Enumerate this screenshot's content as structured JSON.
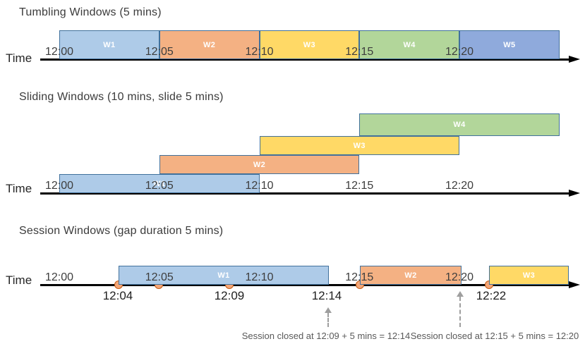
{
  "colors": {
    "window_blue": "#AECBE8",
    "window_orange": "#F4B183",
    "window_yellow": "#FFD966",
    "window_green": "#B2D69A",
    "window_indigo": "#8FAADC",
    "window_border": "#41719C",
    "axis_black": "#000000",
    "event_dot_fill": "#F3A678",
    "event_dot_border": "#C55A11",
    "annotation_gray": "#595959",
    "dashed_arrow_gray": "#9E9E9E"
  },
  "sections": [
    {
      "id": "tumbling",
      "title": "Tumbling Windows (5 mins)",
      "time_label": "Time",
      "ticks": [
        "12:00",
        "12:05",
        "12:10",
        "12:15",
        "12:20"
      ],
      "windows": [
        {
          "label": "W1",
          "start": "12:00",
          "end": "12:05",
          "color": "window_blue"
        },
        {
          "label": "W2",
          "start": "12:05",
          "end": "12:10",
          "color": "window_orange"
        },
        {
          "label": "W3",
          "start": "12:10",
          "end": "12:15",
          "color": "window_yellow"
        },
        {
          "label": "W4",
          "start": "12:15",
          "end": "12:20",
          "color": "window_green"
        },
        {
          "label": "W5",
          "start": "12:20",
          "end": "12:25",
          "color": "window_indigo"
        }
      ]
    },
    {
      "id": "sliding",
      "title": "Sliding Windows (10 mins, slide 5 mins)",
      "time_label": "Time",
      "ticks": [
        "12:00",
        "12:05",
        "12:10",
        "12:15",
        "12:20"
      ],
      "windows": [
        {
          "label": "W1",
          "start": "12:00",
          "end": "12:10",
          "color": "window_blue"
        },
        {
          "label": "W2",
          "start": "12:05",
          "end": "12:15",
          "color": "window_orange"
        },
        {
          "label": "W3",
          "start": "12:10",
          "end": "12:20",
          "color": "window_yellow"
        },
        {
          "label": "W4",
          "start": "12:15",
          "end": "12:25",
          "color": "window_green"
        }
      ]
    },
    {
      "id": "session",
      "title": "Session Windows (gap duration 5 mins)",
      "time_label": "Time",
      "ticks": [
        "12:00",
        "12:05",
        "12:10",
        "12:15",
        "12:20"
      ],
      "windows": [
        {
          "label": "W1",
          "color": "window_blue"
        },
        {
          "label": "W2",
          "color": "window_orange"
        },
        {
          "label": "W3",
          "color": "window_yellow"
        }
      ],
      "event_time_labels": [
        "12:04",
        "12:09",
        "12:14",
        "12:22"
      ],
      "annotations": [
        "Session closed at 12:09 + 5 mins = 12:14",
        "Session closed at 12:15 + 5 mins = 12:20"
      ]
    }
  ]
}
